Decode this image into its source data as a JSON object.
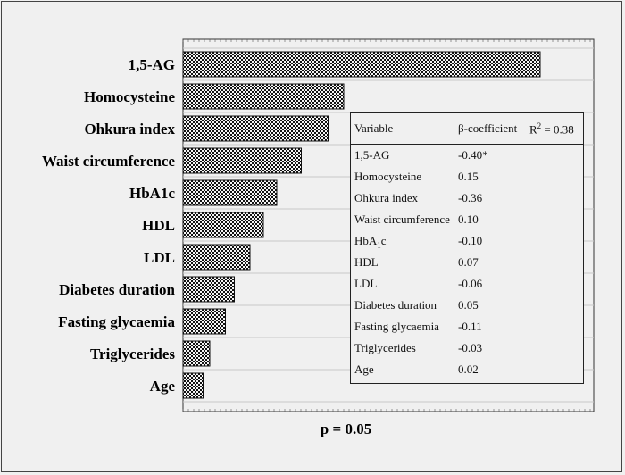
{
  "chart_data": {
    "type": "bar",
    "orientation": "horizontal",
    "categories": [
      "1,5-AG",
      "Homocysteine",
      "Ohkura index",
      "Waist circumference",
      "HbA1c",
      "HDL",
      "LDL",
      "Diabetes duration",
      "Fasting glycaemia",
      "Triglycerides",
      "Age"
    ],
    "values": [
      8.0,
      3.6,
      3.25,
      2.65,
      2.1,
      1.8,
      1.5,
      1.15,
      0.95,
      0.6,
      0.45
    ],
    "xlim": [
      0,
      9.2
    ],
    "reference_line": {
      "value": 3.65,
      "label": "p = 0.05"
    },
    "grid": "horizontal",
    "bar_fill": "checkered",
    "colors": {
      "bar_dark": "#111111",
      "bar_light": "#f4f4f4",
      "background": "#f0f0f0"
    }
  },
  "table": {
    "header": {
      "variable": "Variable",
      "beta": "β-coefficient",
      "r2_prefix": "R",
      "r2_sup": "2",
      "r2_suffix": " = 0.38"
    },
    "rows": [
      {
        "variable": "1,5-AG",
        "value": "-0.40*"
      },
      {
        "variable": "Homocysteine",
        "value": "0.15"
      },
      {
        "variable": "Ohkura index",
        "value": "-0.36"
      },
      {
        "variable": "Waist circumference",
        "value": "0.10"
      },
      {
        "variable_main": "HbA",
        "variable_sub": "1",
        "variable_tail": "c",
        "value": "-0.10"
      },
      {
        "variable": "HDL",
        "value": "0.07"
      },
      {
        "variable": "LDL",
        "value": "-0.06"
      },
      {
        "variable": "Diabetes duration",
        "value": "0.05"
      },
      {
        "variable": "Fasting glycaemia",
        "value": "-0.11"
      },
      {
        "variable": "Triglycerides",
        "value": "-0.03"
      },
      {
        "variable": "Age",
        "value": "0.02"
      }
    ]
  }
}
